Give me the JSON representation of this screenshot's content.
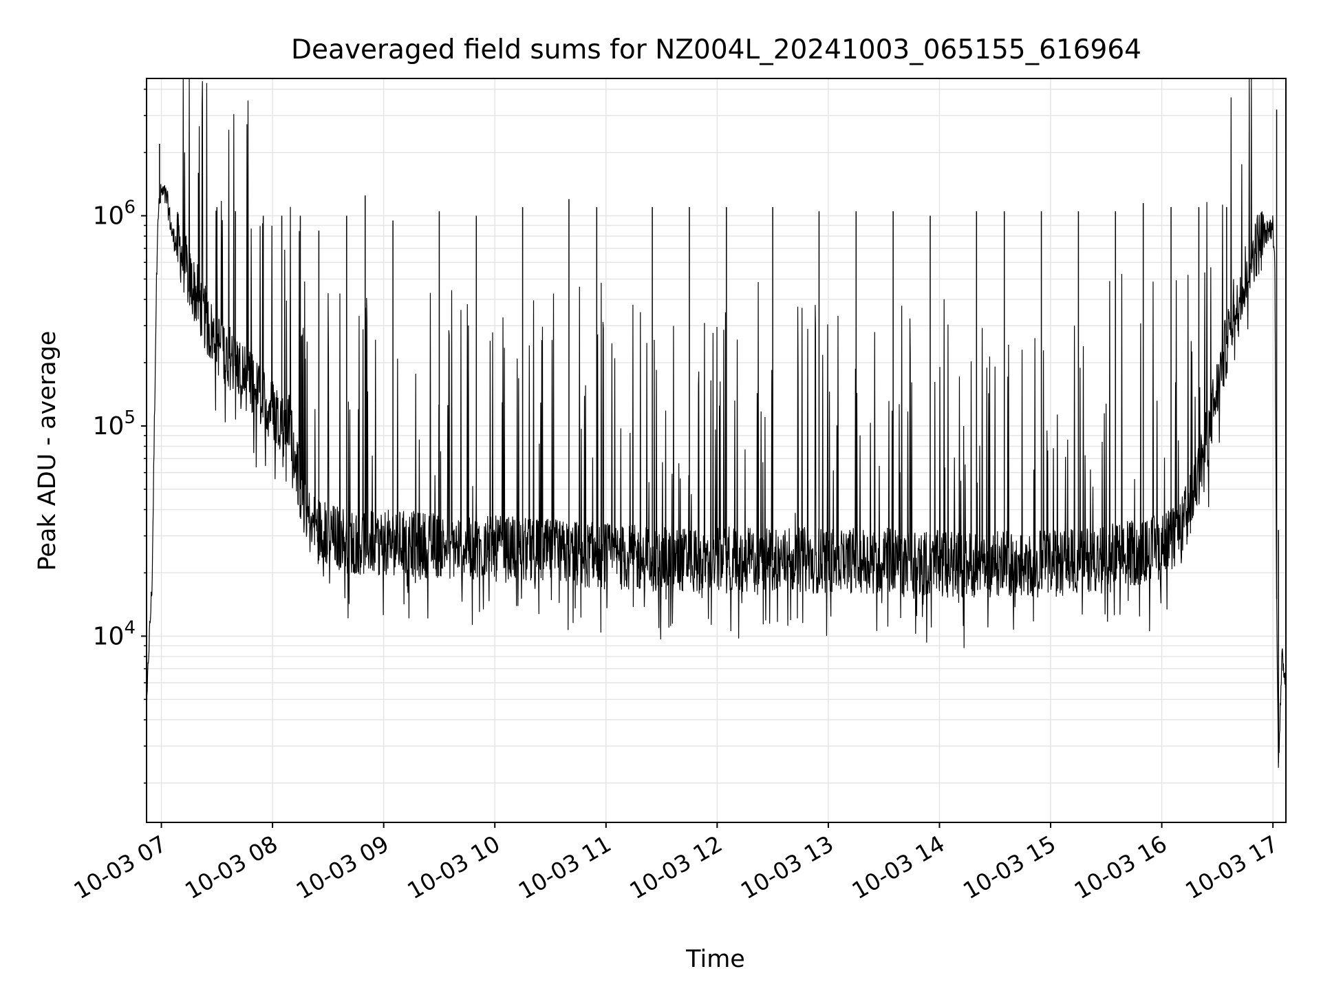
{
  "chart_data": {
    "type": "line",
    "title": "Deaveraged field sums for NZ004L_20241003_065155_616964",
    "xlabel": "Time",
    "ylabel": "Peak ADU - average",
    "yscale": "log",
    "xlim": [
      "2024-10-03 06:52",
      "2024-10-03 17:07"
    ],
    "ylim": [
      1300,
      4500000
    ],
    "xticks": [
      "10-03 07",
      "10-03 08",
      "10-03 09",
      "10-03 10",
      "10-03 11",
      "10-03 12",
      "10-03 13",
      "10-03 14",
      "10-03 15",
      "10-03 16",
      "10-03 17"
    ],
    "xtick_times": [
      "2024-10-03 07:00",
      "2024-10-03 08:00",
      "2024-10-03 09:00",
      "2024-10-03 10:00",
      "2024-10-03 11:00",
      "2024-10-03 12:00",
      "2024-10-03 13:00",
      "2024-10-03 14:00",
      "2024-10-03 15:00",
      "2024-10-03 16:00",
      "2024-10-03 17:00"
    ],
    "yticks": [
      {
        "base": "10",
        "exp": "4",
        "value": 10000
      },
      {
        "base": "10",
        "exp": "5",
        "value": 100000
      },
      {
        "base": "10",
        "exp": "6",
        "value": 1000000
      }
    ],
    "grid": true,
    "line_color": "#000000",
    "grid_color": "#e5e5e5",
    "series": [
      {
        "x": [
          "2024-10-03 06:52",
          "2024-10-03 06:53",
          "2024-10-03 06:55",
          "2024-10-03 06:57",
          "2024-10-03 06:58",
          "2024-10-03 07:00",
          "2024-10-03 07:03",
          "2024-10-03 07:06",
          "2024-10-03 07:10",
          "2024-10-03 07:15",
          "2024-10-03 07:20",
          "2024-10-03 07:25",
          "2024-10-03 07:30",
          "2024-10-03 07:40",
          "2024-10-03 07:50",
          "2024-10-03 08:00",
          "2024-10-03 08:10",
          "2024-10-03 08:15",
          "2024-10-03 08:20",
          "2024-10-03 08:30",
          "2024-10-03 08:45",
          "2024-10-03 09:00",
          "2024-10-03 09:30",
          "2024-10-03 10:00",
          "2024-10-03 10:30",
          "2024-10-03 11:00",
          "2024-10-03 11:30",
          "2024-10-03 12:00",
          "2024-10-03 12:30",
          "2024-10-03 13:00",
          "2024-10-03 13:30",
          "2024-10-03 14:00",
          "2024-10-03 14:30",
          "2024-10-03 15:00",
          "2024-10-03 15:30",
          "2024-10-03 15:50",
          "2024-10-03 16:00",
          "2024-10-03 16:10",
          "2024-10-03 16:20",
          "2024-10-03 16:30",
          "2024-10-03 16:40",
          "2024-10-03 16:50",
          "2024-10-03 16:55",
          "2024-10-03 17:00",
          "2024-10-03 17:01",
          "2024-10-03 17:02",
          "2024-10-03 17:03",
          "2024-10-03 17:05",
          "2024-10-03 17:07"
        ],
        "y": [
          4000,
          8000,
          18000,
          300000,
          1000000,
          1300000,
          1200000,
          800000,
          700000,
          500000,
          400000,
          300000,
          250000,
          200000,
          150000,
          120000,
          100000,
          50000,
          35000,
          30000,
          28000,
          28000,
          27000,
          26000,
          25000,
          24000,
          23000,
          23000,
          23000,
          23000,
          23000,
          22000,
          22000,
          22000,
          24000,
          25000,
          27000,
          30000,
          60000,
          150000,
          400000,
          700000,
          800000,
          900000,
          600000,
          15000,
          2500,
          8000,
          6000
        ]
      }
    ],
    "spikes": [
      {
        "x": "2024-10-03 06:59",
        "y": 2200000
      },
      {
        "x": "2024-10-03 07:20",
        "y": 1600000
      },
      {
        "x": "2024-10-03 07:30",
        "y": 1100000
      },
      {
        "x": "2024-10-03 07:40",
        "y": 1050000
      },
      {
        "x": "2024-10-03 07:55",
        "y": 1000000
      },
      {
        "x": "2024-10-03 08:05",
        "y": 1000000
      },
      {
        "x": "2024-10-03 08:15",
        "y": 1000000
      },
      {
        "x": "2024-10-03 08:25",
        "y": 850000
      },
      {
        "x": "2024-10-03 08:40",
        "y": 1000000
      },
      {
        "x": "2024-10-03 08:50",
        "y": 1250000
      },
      {
        "x": "2024-10-03 09:05",
        "y": 950000
      },
      {
        "x": "2024-10-03 09:30",
        "y": 1050000
      },
      {
        "x": "2024-10-03 09:50",
        "y": 1000000
      },
      {
        "x": "2024-10-03 10:15",
        "y": 1100000
      },
      {
        "x": "2024-10-03 10:40",
        "y": 1200000
      },
      {
        "x": "2024-10-03 10:55",
        "y": 1100000
      },
      {
        "x": "2024-10-03 11:25",
        "y": 1100000
      },
      {
        "x": "2024-10-03 11:45",
        "y": 1100000
      },
      {
        "x": "2024-10-03 12:05",
        "y": 1100000
      },
      {
        "x": "2024-10-03 12:30",
        "y": 1100000
      },
      {
        "x": "2024-10-03 12:55",
        "y": 1050000
      },
      {
        "x": "2024-10-03 13:15",
        "y": 1050000
      },
      {
        "x": "2024-10-03 13:35",
        "y": 1050000
      },
      {
        "x": "2024-10-03 13:55",
        "y": 1000000
      },
      {
        "x": "2024-10-03 14:20",
        "y": 1050000
      },
      {
        "x": "2024-10-03 14:35",
        "y": 1050000
      },
      {
        "x": "2024-10-03 14:55",
        "y": 1050000
      },
      {
        "x": "2024-10-03 15:15",
        "y": 1050000
      },
      {
        "x": "2024-10-03 15:35",
        "y": 1050000
      },
      {
        "x": "2024-10-03 15:50",
        "y": 1150000
      },
      {
        "x": "2024-10-03 16:05",
        "y": 1100000
      },
      {
        "x": "2024-10-03 16:20",
        "y": 1100000
      },
      {
        "x": "2024-10-03 16:35",
        "y": 1100000
      },
      {
        "x": "2024-10-03 17:02",
        "y": 3200000
      },
      {
        "x": "2024-10-03 17:03",
        "y": 32000
      }
    ]
  }
}
